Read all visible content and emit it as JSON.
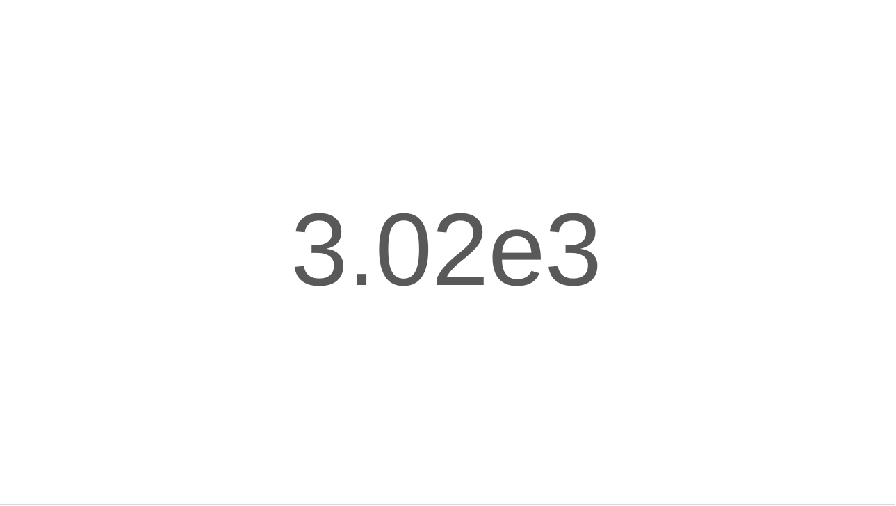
{
  "chart_data": {
    "type": "table",
    "kind": "scorecard",
    "value": 3020,
    "display_value": "3.02e3",
    "colors": {
      "text": "#595959",
      "background": "#ffffff"
    }
  }
}
